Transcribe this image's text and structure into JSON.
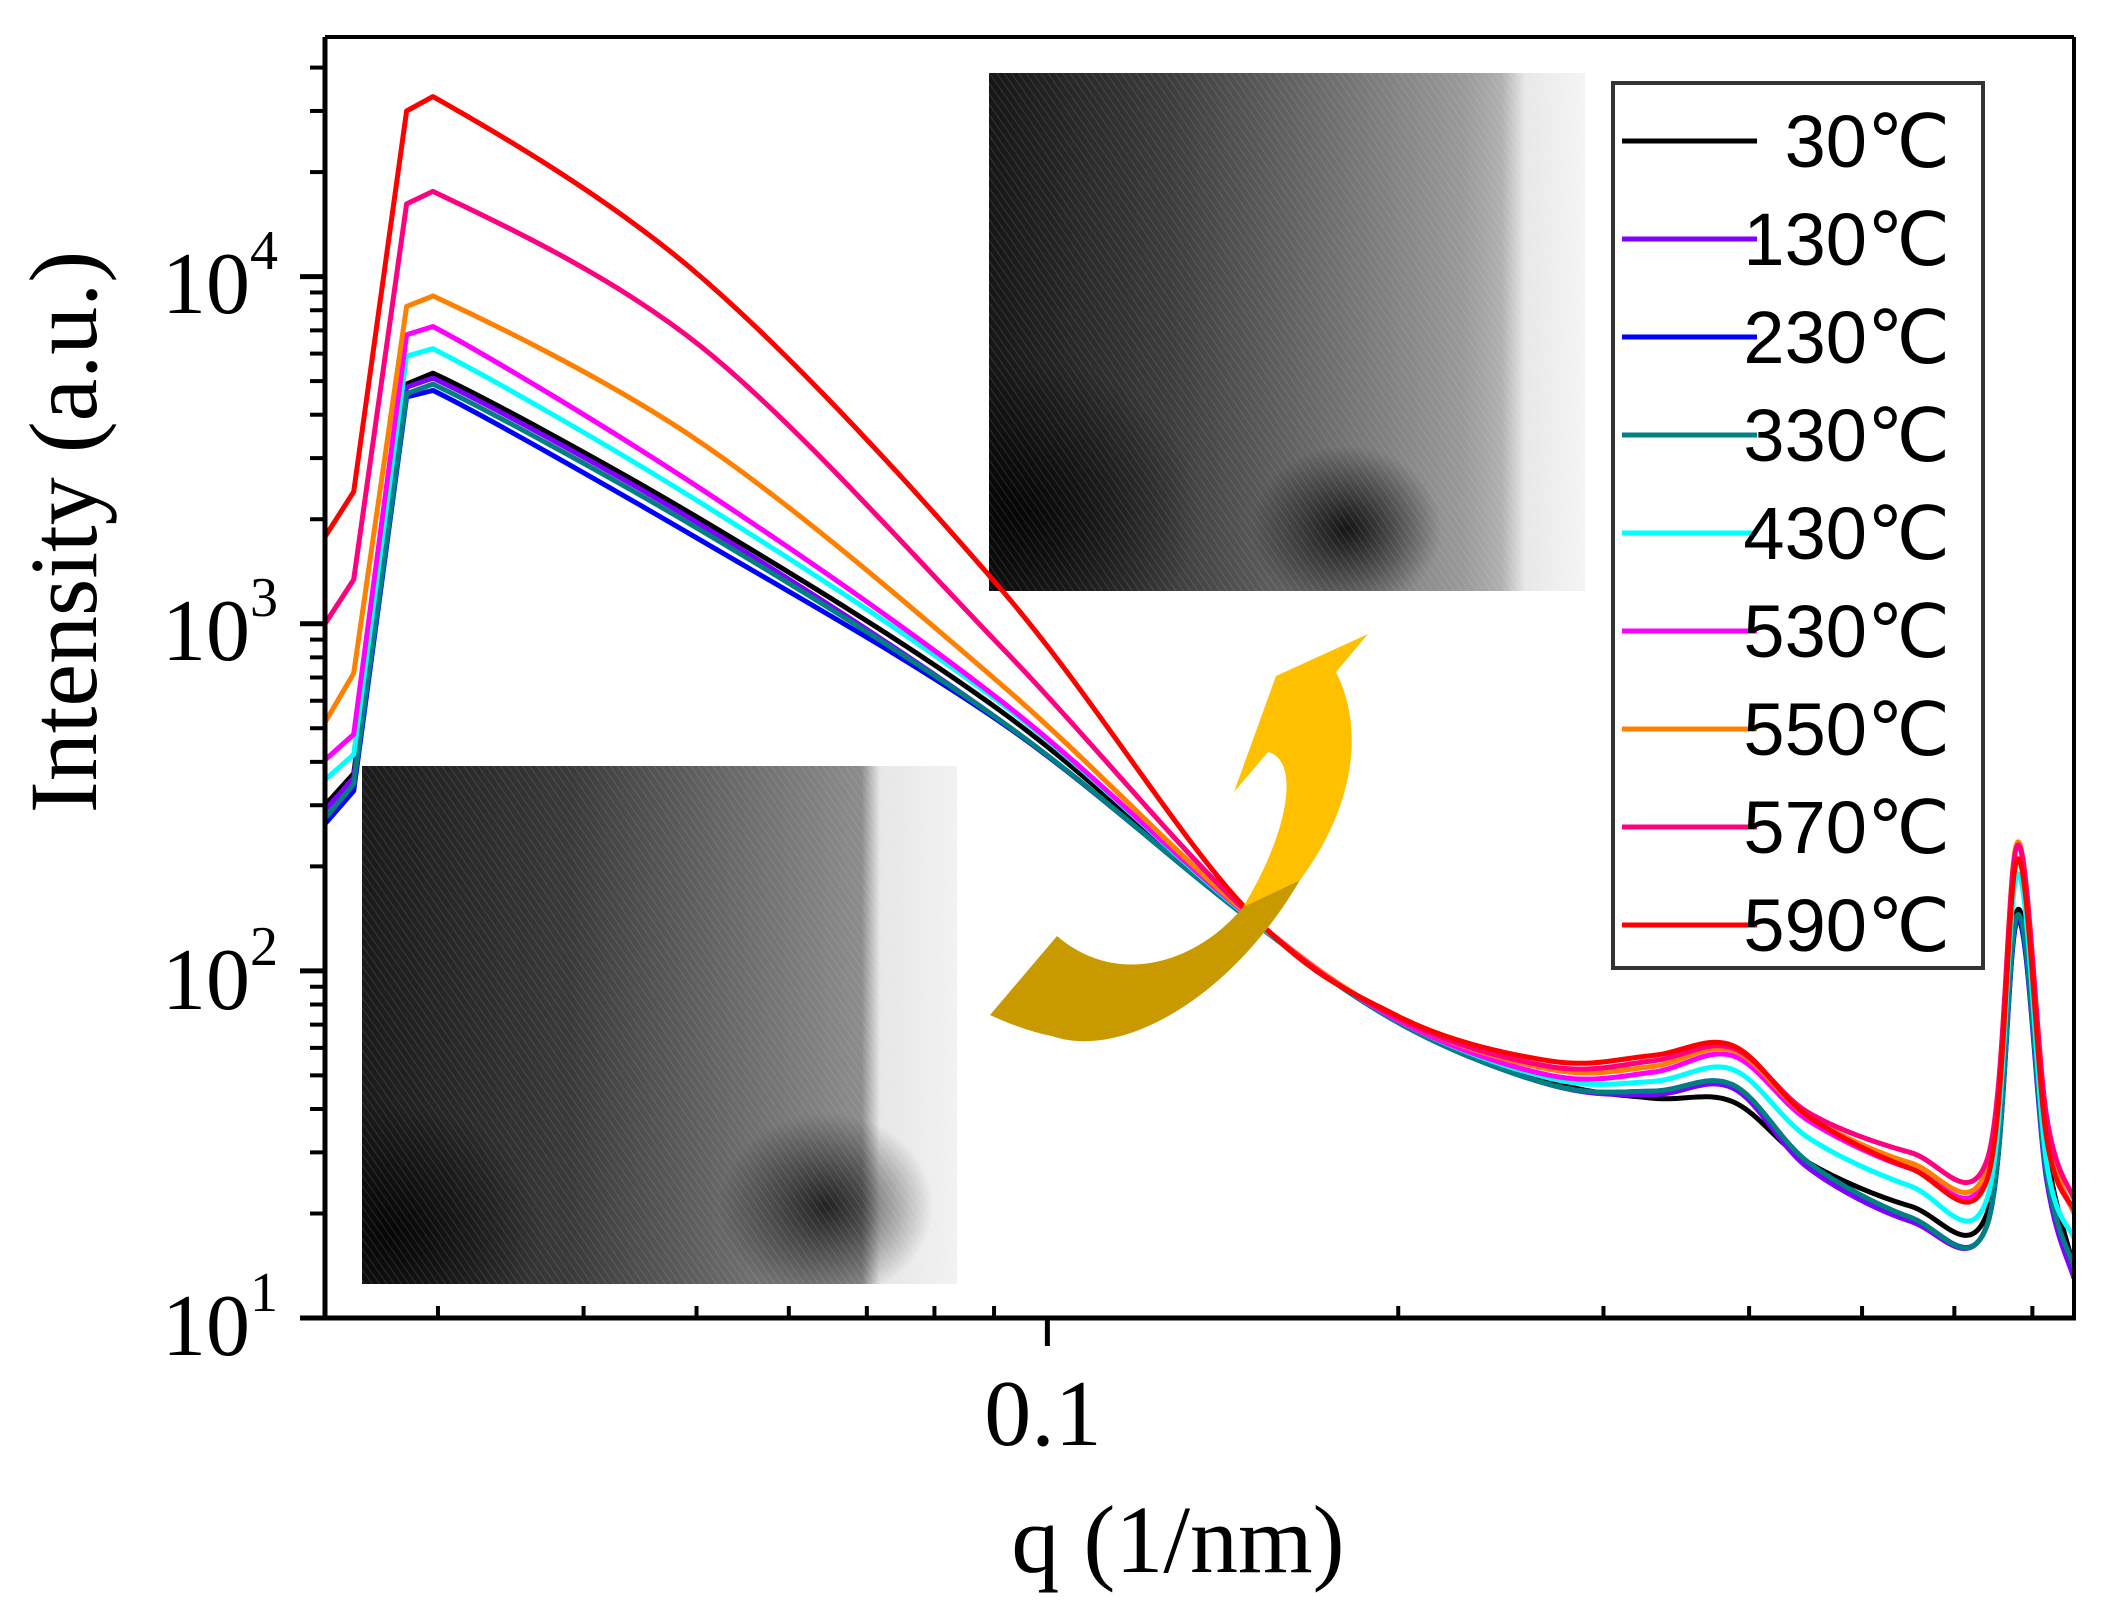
{
  "chart_data": {
    "type": "line",
    "title": "",
    "xlabel": "q (1/nm)",
    "ylabel": "Intensity (a.u.)",
    "xscale": "log",
    "yscale": "log",
    "xlim": [
      0.024,
      0.76
    ],
    "ylim": [
      10,
      49000
    ],
    "grid": false,
    "legend_position": "top-right",
    "x_major_ticks": [
      {
        "value": 0.1,
        "label": "0.1"
      }
    ],
    "x_minor_ticks": [
      0.03,
      0.04,
      0.05,
      0.06,
      0.07,
      0.08,
      0.09,
      0.2,
      0.3,
      0.4,
      0.5,
      0.6,
      0.7
    ],
    "y_major_ticks": [
      {
        "value": 10,
        "base": "10",
        "exp": "1"
      },
      {
        "value": 100,
        "base": "10",
        "exp": "2"
      },
      {
        "value": 1000,
        "base": "10",
        "exp": "3"
      },
      {
        "value": 10000,
        "base": "10",
        "exp": "4"
      }
    ],
    "y_minor_ticks": [
      20,
      30,
      40,
      50,
      60,
      70,
      80,
      90,
      200,
      300,
      400,
      500,
      600,
      700,
      800,
      900,
      2000,
      3000,
      4000,
      5000,
      6000,
      7000,
      8000,
      9000,
      20000,
      30000,
      40000
    ],
    "x": [
      0.024,
      0.0254,
      0.0282,
      0.0297,
      0.0504,
      0.0912,
      0.147,
      0.2,
      0.27,
      0.33,
      0.387,
      0.45,
      0.55,
      0.64,
      0.68,
      0.72,
      0.76
    ],
    "series": [
      {
        "name": "30℃",
        "color": "#000000",
        "values": [
          300,
          370,
          4900,
          5270,
          2000,
          560,
          147,
          72,
          48,
          43,
          42,
          28,
          21,
          20,
          150,
          30,
          14
        ]
      },
      {
        "name": "130℃",
        "color": "#8000FF",
        "values": [
          290,
          360,
          4800,
          5100,
          1930,
          525,
          147,
          71,
          47,
          44,
          46,
          27,
          19,
          18.5,
          140,
          25,
          13
        ]
      },
      {
        "name": "230℃",
        "color": "#0000FF",
        "values": [
          265,
          330,
          4500,
          4700,
          1740,
          520,
          146,
          71,
          47,
          45,
          47,
          28,
          19.5,
          18.5,
          140,
          26,
          14
        ]
      },
      {
        "name": "330℃",
        "color": "#008080",
        "values": [
          275,
          345,
          4600,
          4900,
          1860,
          525,
          146,
          71,
          47,
          45,
          47,
          28,
          19.5,
          18.5,
          145,
          26,
          14
        ]
      },
      {
        "name": "430℃",
        "color": "#00FFFF",
        "values": [
          355,
          420,
          5900,
          6200,
          2230,
          590,
          148,
          72,
          49,
          48,
          52,
          33,
          24,
          22,
          190,
          28,
          17
        ]
      },
      {
        "name": "530℃",
        "color": "#FF00FF",
        "values": [
          405,
          480,
          6800,
          7180,
          2450,
          600,
          149,
          72,
          50,
          51,
          57,
          37,
          27,
          26,
          230,
          35,
          20
        ]
      },
      {
        "name": "550℃",
        "color": "#FF8000",
        "values": [
          520,
          720,
          8200,
          8800,
          3330,
          670,
          150,
          73,
          52,
          53,
          59,
          38,
          28,
          27,
          235,
          36,
          20
        ]
      },
      {
        "name": "570℃",
        "color": "#FF0080",
        "values": [
          1000,
          1340,
          16200,
          17600,
          6300,
          860,
          152,
          73,
          53,
          55,
          60,
          39,
          30,
          28.5,
          230,
          38,
          22
        ]
      },
      {
        "name": "590℃",
        "color": "#FF0000",
        "values": [
          1780,
          2400,
          30000,
          33000,
          10000,
          1260,
          155,
          74,
          55,
          57,
          61,
          38,
          27,
          25,
          210,
          33,
          20.5
        ]
      }
    ],
    "annotations": [
      {
        "type": "inset-image",
        "description": "TEM micrograph (lower-temperature sample)",
        "position": "lower-left"
      },
      {
        "type": "inset-image",
        "description": "TEM micrograph (higher-temperature sample)",
        "position": "upper-center"
      },
      {
        "type": "curved-arrow",
        "description": "arrow from lower-left inset to upper inset",
        "colors": [
          "#C99A00",
          "#FFC000"
        ]
      }
    ]
  }
}
